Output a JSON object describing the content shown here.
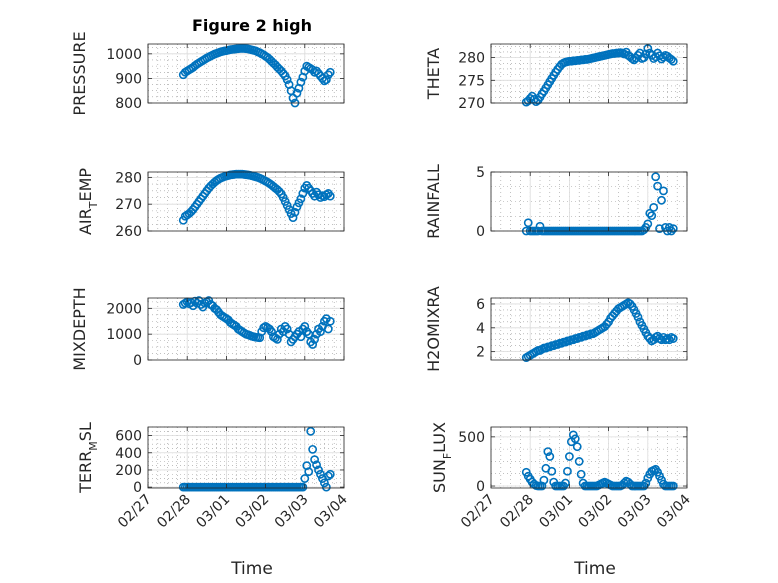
{
  "figure": {
    "title": "Figure 2 high",
    "xlabel": "Time"
  },
  "style": {
    "marker_color": "#0072BD",
    "axis_color": "#262626",
    "grid_color": "#9a9a9a"
  },
  "x_axis": {
    "tick_labels": [
      "02/27",
      "02/28",
      "03/01",
      "03/02",
      "03/03",
      "03/04"
    ],
    "xlim": [
      0,
      5
    ]
  },
  "chart_data": [
    {
      "type": "scatter",
      "ylabel": "PRESSURE",
      "ylabel_sub": "",
      "ylabel_tail": "",
      "ylim": [
        800,
        1040
      ],
      "yticks": [
        800,
        900,
        1000
      ],
      "x": [
        0.9,
        0.95,
        1.0,
        1.05,
        1.1,
        1.15,
        1.2,
        1.25,
        1.3,
        1.35,
        1.4,
        1.45,
        1.5,
        1.55,
        1.6,
        1.65,
        1.7,
        1.75,
        1.8,
        1.85,
        1.9,
        1.95,
        2.0,
        2.05,
        2.1,
        2.15,
        2.2,
        2.25,
        2.3,
        2.35,
        2.4,
        2.45,
        2.5,
        2.55,
        2.6,
        2.65,
        2.7,
        2.75,
        2.8,
        2.85,
        2.9,
        2.95,
        3.0,
        3.05,
        3.1,
        3.15,
        3.2,
        3.25,
        3.3,
        3.35,
        3.4,
        3.45,
        3.5,
        3.55,
        3.6,
        3.65,
        3.7,
        3.75,
        3.8,
        3.85,
        3.9,
        3.95,
        4.0,
        4.05,
        4.1,
        4.15,
        4.2,
        4.25,
        4.3,
        4.35,
        4.4,
        4.45,
        4.5,
        4.55,
        4.6,
        4.65
      ],
      "y": [
        915,
        925,
        930,
        935,
        940,
        945,
        952,
        958,
        963,
        968,
        973,
        978,
        983,
        987,
        991,
        995,
        999,
        1002,
        1005,
        1008,
        1010,
        1012,
        1013,
        1015,
        1017,
        1018,
        1019,
        1020,
        1021,
        1022,
        1022,
        1022,
        1021,
        1020,
        1018,
        1016,
        1014,
        1012,
        1008,
        1005,
        1000,
        996,
        990,
        985,
        978,
        970,
        962,
        955,
        946,
        938,
        930,
        920,
        910,
        895,
        875,
        850,
        820,
        800,
        840,
        860,
        885,
        905,
        930,
        950,
        945,
        940,
        935,
        925,
        930,
        920,
        910,
        900,
        890,
        895,
        915,
        925
      ]
    },
    {
      "type": "scatter",
      "ylabel": "THETA",
      "ylabel_sub": "",
      "ylabel_tail": "",
      "ylim": [
        270,
        283
      ],
      "yticks": [
        270,
        275,
        280
      ],
      "x": [
        0.9,
        0.95,
        1.0,
        1.05,
        1.1,
        1.15,
        1.2,
        1.25,
        1.3,
        1.35,
        1.4,
        1.45,
        1.5,
        1.55,
        1.6,
        1.65,
        1.7,
        1.75,
        1.8,
        1.85,
        1.9,
        1.95,
        2.0,
        2.05,
        2.1,
        2.15,
        2.2,
        2.25,
        2.3,
        2.35,
        2.4,
        2.45,
        2.5,
        2.55,
        2.6,
        2.65,
        2.7,
        2.75,
        2.8,
        2.85,
        2.9,
        2.95,
        3.0,
        3.05,
        3.1,
        3.15,
        3.2,
        3.25,
        3.3,
        3.35,
        3.4,
        3.45,
        3.5,
        3.55,
        3.6,
        3.65,
        3.7,
        3.75,
        3.8,
        3.85,
        3.9,
        3.95,
        4.0,
        4.05,
        4.1,
        4.15,
        4.2,
        4.25,
        4.3,
        4.35,
        4.4,
        4.45,
        4.5,
        4.55,
        4.6,
        4.65
      ],
      "y": [
        270.2,
        270.5,
        271.0,
        271.5,
        270.8,
        270.3,
        270.6,
        271.3,
        272.0,
        272.6,
        273.3,
        274.0,
        274.7,
        275.4,
        276.1,
        276.8,
        277.4,
        278.0,
        278.5,
        278.8,
        279.0,
        279.1,
        279.2,
        279.2,
        279.3,
        279.3,
        279.4,
        279.4,
        279.5,
        279.5,
        279.6,
        279.6,
        279.7,
        279.8,
        279.9,
        280.0,
        280.1,
        280.2,
        280.3,
        280.4,
        280.5,
        280.6,
        280.7,
        280.8,
        280.9,
        280.9,
        281.0,
        281.0,
        281.1,
        281.0,
        280.8,
        281.2,
        280.5,
        280.2,
        279.8,
        279.5,
        279.9,
        280.5,
        281.0,
        279.8,
        280.0,
        280.8,
        282.0,
        281.0,
        280.5,
        279.8,
        280.2,
        281.0,
        280.4,
        279.7,
        280.1,
        280.5,
        280.3,
        279.9,
        279.6,
        279.2
      ]
    },
    {
      "type": "scatter",
      "ylabel": "AIR",
      "ylabel_sub": "T",
      "ylabel_tail": "EMP",
      "ylim": [
        260,
        282
      ],
      "yticks": [
        260,
        270,
        280
      ],
      "x": [
        0.9,
        0.95,
        1.0,
        1.05,
        1.1,
        1.15,
        1.2,
        1.25,
        1.3,
        1.35,
        1.4,
        1.45,
        1.5,
        1.55,
        1.6,
        1.65,
        1.7,
        1.75,
        1.8,
        1.85,
        1.9,
        1.95,
        2.0,
        2.05,
        2.1,
        2.15,
        2.2,
        2.25,
        2.3,
        2.35,
        2.4,
        2.45,
        2.5,
        2.55,
        2.6,
        2.65,
        2.7,
        2.75,
        2.8,
        2.85,
        2.9,
        2.95,
        3.0,
        3.05,
        3.1,
        3.15,
        3.2,
        3.25,
        3.3,
        3.35,
        3.4,
        3.45,
        3.5,
        3.55,
        3.6,
        3.65,
        3.7,
        3.75,
        3.8,
        3.85,
        3.9,
        3.95,
        4.0,
        4.05,
        4.1,
        4.15,
        4.2,
        4.25,
        4.3,
        4.35,
        4.4,
        4.45,
        4.5,
        4.55,
        4.6,
        4.65
      ],
      "y": [
        264.0,
        265.5,
        266.0,
        266.5,
        267.2,
        268.0,
        269.0,
        270.0,
        271.0,
        272.0,
        273.0,
        274.0,
        275.0,
        276.0,
        276.8,
        277.5,
        278.2,
        278.8,
        279.3,
        279.7,
        280.0,
        280.3,
        280.5,
        280.7,
        280.9,
        281.0,
        281.1,
        281.2,
        281.2,
        281.2,
        281.2,
        281.1,
        281.0,
        280.9,
        280.8,
        280.6,
        280.4,
        280.2,
        280.0,
        279.7,
        279.4,
        279.0,
        278.6,
        278.2,
        277.7,
        277.2,
        276.6,
        276.0,
        275.4,
        274.7,
        273.8,
        272.5,
        271.0,
        269.5,
        268.0,
        266.5,
        265.0,
        267.0,
        269.0,
        270.5,
        272.0,
        274.0,
        276.0,
        277.0,
        276.0,
        275.0,
        274.0,
        273.0,
        274.5,
        273.5,
        272.5,
        273.2,
        272.8,
        273.5,
        274.0,
        273.0
      ]
    },
    {
      "type": "scatter",
      "ylabel": "RAINFALL",
      "ylabel_sub": "",
      "ylabel_tail": "",
      "ylim": [
        0,
        5
      ],
      "yticks": [
        0,
        5
      ],
      "x": [
        0.9,
        0.95,
        1.0,
        1.05,
        1.1,
        1.15,
        1.2,
        1.25,
        1.3,
        1.35,
        1.4,
        1.45,
        1.5,
        1.55,
        1.6,
        1.65,
        1.7,
        1.75,
        1.8,
        1.85,
        1.9,
        1.95,
        2.0,
        2.05,
        2.1,
        2.15,
        2.2,
        2.25,
        2.3,
        2.35,
        2.4,
        2.45,
        2.5,
        2.55,
        2.6,
        2.65,
        2.7,
        2.75,
        2.8,
        2.85,
        2.9,
        2.95,
        3.0,
        3.05,
        3.1,
        3.15,
        3.2,
        3.25,
        3.3,
        3.35,
        3.4,
        3.45,
        3.5,
        3.55,
        3.6,
        3.65,
        3.7,
        3.75,
        3.8,
        3.85,
        3.9,
        3.95,
        4.0,
        4.05,
        4.1,
        4.15,
        4.2,
        4.25,
        4.3,
        4.35,
        4.4,
        4.45,
        4.5,
        4.55,
        4.6,
        4.65
      ],
      "y": [
        0.0,
        0.7,
        0.0,
        0.0,
        0.0,
        0.0,
        0.0,
        0.4,
        0.0,
        0.0,
        0.0,
        0.0,
        0.0,
        0.0,
        0.0,
        0.0,
        0.0,
        0.0,
        0.0,
        0.0,
        0.0,
        0.0,
        0.0,
        0.0,
        0.0,
        0.0,
        0.0,
        0.0,
        0.0,
        0.0,
        0.0,
        0.0,
        0.0,
        0.0,
        0.0,
        0.0,
        0.0,
        0.0,
        0.0,
        0.0,
        0.0,
        0.0,
        0.0,
        0.0,
        0.0,
        0.0,
        0.0,
        0.0,
        0.0,
        0.0,
        0.0,
        0.0,
        0.0,
        0.0,
        0.0,
        0.0,
        0.0,
        0.0,
        0.0,
        0.0,
        0.1,
        0.3,
        0.6,
        1.5,
        1.3,
        2.0,
        4.6,
        3.8,
        0.2,
        2.6,
        3.4,
        0.3,
        0.0,
        0.3,
        0.0,
        0.2
      ]
    },
    {
      "type": "scatter",
      "ylabel": "MIXDEPTH",
      "ylabel_sub": "",
      "ylabel_tail": "",
      "ylim": [
        0,
        2400
      ],
      "yticks": [
        0,
        1000,
        2000
      ],
      "x": [
        0.9,
        0.95,
        1.0,
        1.05,
        1.1,
        1.15,
        1.2,
        1.25,
        1.3,
        1.35,
        1.4,
        1.45,
        1.5,
        1.55,
        1.6,
        1.65,
        1.7,
        1.75,
        1.8,
        1.85,
        1.9,
        1.95,
        2.0,
        2.05,
        2.1,
        2.15,
        2.2,
        2.25,
        2.3,
        2.35,
        2.4,
        2.45,
        2.5,
        2.55,
        2.6,
        2.65,
        2.7,
        2.75,
        2.8,
        2.85,
        2.9,
        2.95,
        3.0,
        3.05,
        3.1,
        3.15,
        3.2,
        3.25,
        3.3,
        3.35,
        3.4,
        3.45,
        3.5,
        3.55,
        3.6,
        3.65,
        3.7,
        3.75,
        3.8,
        3.85,
        3.9,
        3.95,
        4.0,
        4.05,
        4.1,
        4.15,
        4.2,
        4.25,
        4.3,
        4.35,
        4.4,
        4.45,
        4.5,
        4.55,
        4.6,
        4.65
      ],
      "y": [
        2150,
        2200,
        2250,
        2180,
        2220,
        2100,
        2280,
        2200,
        2300,
        2150,
        2050,
        2200,
        2250,
        2300,
        2150,
        2100,
        2000,
        1950,
        1850,
        1750,
        1700,
        1650,
        1600,
        1550,
        1450,
        1400,
        1350,
        1300,
        1200,
        1150,
        1100,
        1050,
        1000,
        980,
        950,
        920,
        900,
        880,
        870,
        860,
        1100,
        1250,
        1300,
        1250,
        1200,
        1100,
        900,
        850,
        800,
        1000,
        1200,
        1100,
        1300,
        1200,
        1000,
        700,
        800,
        900,
        1000,
        1100,
        900,
        1200,
        1300,
        1100,
        1000,
        700,
        600,
        800,
        1000,
        1200,
        1100,
        1300,
        1500,
        1600,
        1200,
        1500
      ]
    },
    {
      "type": "scatter",
      "ylabel": "H2OMIXRA",
      "ylabel_sub": "",
      "ylabel_tail": "",
      "ylim": [
        1.3,
        6.5
      ],
      "yticks": [
        2,
        4,
        6
      ],
      "x": [
        0.9,
        0.95,
        1.0,
        1.05,
        1.1,
        1.15,
        1.2,
        1.25,
        1.3,
        1.35,
        1.4,
        1.45,
        1.5,
        1.55,
        1.6,
        1.65,
        1.7,
        1.75,
        1.8,
        1.85,
        1.9,
        1.95,
        2.0,
        2.05,
        2.1,
        2.15,
        2.2,
        2.25,
        2.3,
        2.35,
        2.4,
        2.45,
        2.5,
        2.55,
        2.6,
        2.65,
        2.7,
        2.75,
        2.8,
        2.85,
        2.9,
        2.95,
        3.0,
        3.05,
        3.1,
        3.15,
        3.2,
        3.25,
        3.3,
        3.35,
        3.4,
        3.45,
        3.5,
        3.55,
        3.6,
        3.65,
        3.7,
        3.75,
        3.8,
        3.85,
        3.9,
        3.95,
        4.0,
        4.05,
        4.1,
        4.15,
        4.2,
        4.25,
        4.3,
        4.35,
        4.4,
        4.45,
        4.5,
        4.55,
        4.6,
        4.65
      ],
      "y": [
        1.5,
        1.6,
        1.7,
        1.8,
        1.9,
        2.0,
        2.1,
        2.1,
        2.2,
        2.3,
        2.3,
        2.4,
        2.4,
        2.5,
        2.5,
        2.6,
        2.6,
        2.7,
        2.7,
        2.8,
        2.8,
        2.9,
        2.9,
        3.0,
        3.0,
        3.1,
        3.1,
        3.2,
        3.2,
        3.3,
        3.3,
        3.4,
        3.4,
        3.5,
        3.5,
        3.6,
        3.7,
        3.8,
        3.9,
        4.0,
        4.1,
        4.3,
        4.5,
        4.8,
        5.0,
        5.2,
        5.4,
        5.6,
        5.7,
        5.8,
        5.9,
        6.0,
        6.1,
        6.0,
        5.8,
        5.5,
        5.2,
        4.9,
        4.5,
        4.2,
        3.9,
        3.6,
        3.3,
        3.1,
        2.9,
        3.0,
        3.2,
        3.3,
        3.1,
        3.0,
        3.2,
        3.0,
        3.1,
        3.0,
        3.2,
        3.1
      ]
    },
    {
      "type": "scatter",
      "ylabel": "TERR",
      "ylabel_sub": "M",
      "ylabel_tail": "SL",
      "ylim": [
        -10,
        700
      ],
      "yticks": [
        0,
        200,
        400,
        600
      ],
      "x": [
        0.9,
        0.95,
        1.0,
        1.05,
        1.1,
        1.15,
        1.2,
        1.25,
        1.3,
        1.35,
        1.4,
        1.45,
        1.5,
        1.55,
        1.6,
        1.65,
        1.7,
        1.75,
        1.8,
        1.85,
        1.9,
        1.95,
        2.0,
        2.05,
        2.1,
        2.15,
        2.2,
        2.25,
        2.3,
        2.35,
        2.4,
        2.45,
        2.5,
        2.55,
        2.6,
        2.65,
        2.7,
        2.75,
        2.8,
        2.85,
        2.9,
        2.95,
        3.0,
        3.05,
        3.1,
        3.15,
        3.2,
        3.25,
        3.3,
        3.35,
        3.4,
        3.45,
        3.5,
        3.55,
        3.6,
        3.65,
        3.7,
        3.75,
        3.8,
        3.85,
        3.9,
        3.95,
        4.0,
        4.05,
        4.1,
        4.15,
        4.2,
        4.25,
        4.3,
        4.35,
        4.4,
        4.45,
        4.5,
        4.55,
        4.6,
        4.65
      ],
      "y": [
        0,
        0,
        0,
        0,
        0,
        0,
        0,
        0,
        0,
        0,
        0,
        0,
        0,
        0,
        0,
        0,
        0,
        0,
        0,
        0,
        0,
        0,
        0,
        0,
        0,
        0,
        0,
        0,
        0,
        0,
        0,
        0,
        0,
        0,
        0,
        0,
        0,
        0,
        0,
        0,
        0,
        0,
        0,
        0,
        0,
        0,
        0,
        0,
        0,
        0,
        0,
        0,
        0,
        0,
        0,
        0,
        0,
        0,
        0,
        0,
        0,
        0,
        100,
        250,
        180,
        650,
        440,
        320,
        260,
        200,
        150,
        100,
        50,
        0,
        130,
        150
      ]
    },
    {
      "type": "scatter",
      "ylabel": "SUN",
      "ylabel_sub": "F",
      "ylabel_tail": "LUX",
      "ylim": [
        -20,
        600
      ],
      "yticks": [
        0,
        500
      ],
      "x": [
        0.9,
        0.95,
        1.0,
        1.05,
        1.1,
        1.15,
        1.2,
        1.25,
        1.3,
        1.35,
        1.4,
        1.45,
        1.5,
        1.55,
        1.6,
        1.65,
        1.7,
        1.75,
        1.8,
        1.85,
        1.9,
        1.95,
        2.0,
        2.05,
        2.1,
        2.15,
        2.2,
        2.25,
        2.3,
        2.35,
        2.4,
        2.45,
        2.5,
        2.55,
        2.6,
        2.65,
        2.7,
        2.75,
        2.8,
        2.85,
        2.9,
        2.95,
        3.0,
        3.05,
        3.1,
        3.15,
        3.2,
        3.25,
        3.3,
        3.35,
        3.4,
        3.45,
        3.5,
        3.55,
        3.6,
        3.65,
        3.7,
        3.75,
        3.8,
        3.85,
        3.9,
        3.95,
        4.0,
        4.05,
        4.1,
        4.15,
        4.2,
        4.25,
        4.3,
        4.35,
        4.4,
        4.45,
        4.5,
        4.55,
        4.6,
        4.65
      ],
      "y": [
        140,
        100,
        70,
        40,
        20,
        5,
        0,
        0,
        0,
        60,
        180,
        350,
        300,
        150,
        40,
        0,
        0,
        0,
        0,
        0,
        30,
        150,
        300,
        450,
        520,
        480,
        400,
        250,
        120,
        30,
        0,
        0,
        0,
        0,
        0,
        0,
        0,
        10,
        20,
        30,
        40,
        30,
        20,
        10,
        0,
        0,
        0,
        0,
        0,
        10,
        30,
        50,
        40,
        20,
        0,
        0,
        0,
        0,
        0,
        0,
        0,
        30,
        80,
        120,
        150,
        160,
        170,
        140,
        100,
        60,
        20,
        0,
        0,
        0,
        0,
        0
      ]
    }
  ]
}
